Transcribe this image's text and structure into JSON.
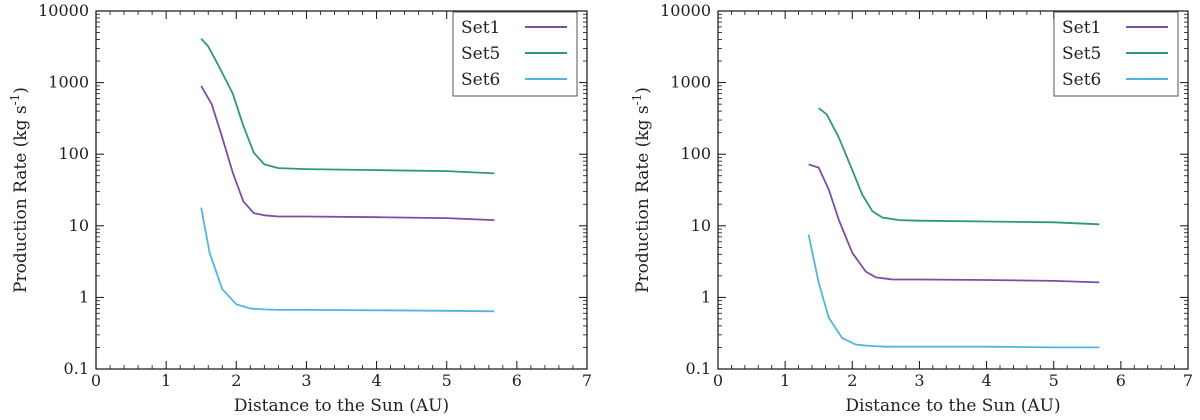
{
  "colors": {
    "Set1": "#7a4fa3",
    "Set5": "#2e9a74",
    "Set6": "#56b3e0"
  },
  "chart_data": [
    {
      "type": "line",
      "yscale": "log",
      "xlabel": "Distance to the Sun (AU)",
      "ylabel_main": "Production Rate (kg s",
      "ylabel_sup": "-1",
      "ylabel_close": ")",
      "xlim": [
        0,
        7
      ],
      "ylim": [
        0.1,
        10000
      ],
      "xticks": [
        0,
        1,
        2,
        3,
        4,
        5,
        6,
        7
      ],
      "xtick_labels": [
        "0",
        "1",
        "2",
        "3",
        "4",
        "5",
        "6",
        "7"
      ],
      "yticks": [
        0.1,
        1,
        10,
        100,
        1000,
        10000
      ],
      "ytick_labels": [
        "0.1",
        "1",
        "10",
        "100",
        "1000",
        "10000"
      ],
      "legend": "top-right",
      "series": [
        {
          "name": "Set1",
          "color_key": "Set1",
          "x": [
            1.5,
            1.65,
            1.8,
            1.95,
            2.1,
            2.25,
            2.4,
            2.6,
            3.0,
            4.0,
            5.0,
            5.68
          ],
          "y": [
            900,
            500,
            170,
            55,
            22,
            15,
            14,
            13.5,
            13.5,
            13.2,
            12.8,
            12
          ]
        },
        {
          "name": "Set5",
          "color_key": "Set5",
          "x": [
            1.5,
            1.6,
            1.75,
            1.95,
            2.1,
            2.25,
            2.4,
            2.6,
            3.0,
            4.0,
            5.0,
            5.68
          ],
          "y": [
            4100,
            3200,
            1700,
            700,
            250,
            105,
            72,
            64,
            62,
            60,
            58,
            54
          ]
        },
        {
          "name": "Set6",
          "color_key": "Set6",
          "x": [
            1.5,
            1.62,
            1.8,
            2.0,
            2.2,
            2.4,
            2.6,
            3.0,
            4.0,
            5.0,
            5.68
          ],
          "y": [
            18,
            4.2,
            1.3,
            0.8,
            0.7,
            0.68,
            0.67,
            0.67,
            0.66,
            0.65,
            0.64
          ]
        }
      ]
    },
    {
      "type": "line",
      "yscale": "log",
      "xlabel": "Distance to the Sun (AU)",
      "ylabel_main": "Production Rate (kg s",
      "ylabel_sup": "-1",
      "ylabel_close": ")",
      "xlim": [
        0,
        7
      ],
      "ylim": [
        0.1,
        10000
      ],
      "xticks": [
        0,
        1,
        2,
        3,
        4,
        5,
        6,
        7
      ],
      "xtick_labels": [
        "0",
        "1",
        "2",
        "3",
        "4",
        "5",
        "6",
        "7"
      ],
      "yticks": [
        0.1,
        1,
        10,
        100,
        1000,
        10000
      ],
      "ytick_labels": [
        "0.1",
        "1",
        "10",
        "100",
        "1000",
        "10000"
      ],
      "legend": "top-right",
      "series": [
        {
          "name": "Set1",
          "color_key": "Set1",
          "x": [
            1.35,
            1.5,
            1.65,
            1.8,
            2.0,
            2.2,
            2.35,
            2.6,
            3.0,
            4.0,
            5.0,
            5.68
          ],
          "y": [
            72,
            65,
            32,
            12,
            4.2,
            2.3,
            1.9,
            1.78,
            1.78,
            1.75,
            1.7,
            1.62
          ]
        },
        {
          "name": "Set5",
          "color_key": "Set5",
          "x": [
            1.5,
            1.62,
            1.8,
            2.0,
            2.15,
            2.3,
            2.45,
            2.7,
            3.0,
            4.0,
            5.0,
            5.68
          ],
          "y": [
            440,
            360,
            170,
            60,
            27,
            16,
            13,
            12,
            11.8,
            11.5,
            11.2,
            10.5
          ]
        },
        {
          "name": "Set6",
          "color_key": "Set6",
          "x": [
            1.35,
            1.5,
            1.65,
            1.85,
            2.05,
            2.25,
            2.5,
            3.0,
            4.0,
            5.0,
            5.68
          ],
          "y": [
            7.5,
            1.6,
            0.52,
            0.27,
            0.22,
            0.21,
            0.205,
            0.205,
            0.205,
            0.2,
            0.2
          ]
        }
      ]
    }
  ]
}
